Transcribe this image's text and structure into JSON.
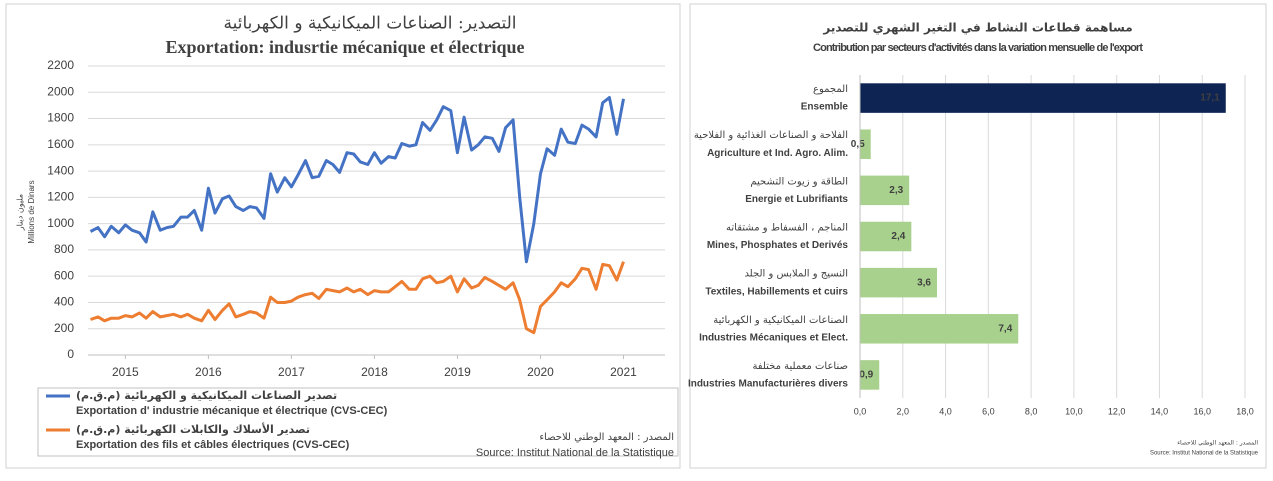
{
  "chart_data": [
    {
      "type": "line",
      "title_ar": "التصدير: الصناعات الميكانيكية و الكهربائية",
      "title": "Exportation: indusrtie mécanique et électrique",
      "ylabel_ar": "مليون دينار",
      "ylabel": "Millions de Dinars",
      "source_ar": "المصدر : المعهد الوطني للاحصاء",
      "source": "Source: Institut National de la Statistique",
      "xlim": [
        2014.55,
        2021.5
      ],
      "xticks": [
        2015,
        2016,
        2017,
        2018,
        2019,
        2020,
        2021
      ],
      "ylim": [
        0,
        2200
      ],
      "yticks": [
        0,
        200,
        400,
        600,
        800,
        1000,
        1200,
        1400,
        1600,
        1800,
        2000,
        2200
      ],
      "grid": true,
      "x": [
        2014.58,
        2014.67,
        2014.75,
        2014.83,
        2014.92,
        2015.0,
        2015.08,
        2015.17,
        2015.25,
        2015.33,
        2015.42,
        2015.5,
        2015.58,
        2015.67,
        2015.75,
        2015.83,
        2015.92,
        2016.0,
        2016.08,
        2016.17,
        2016.25,
        2016.33,
        2016.42,
        2016.5,
        2016.58,
        2016.67,
        2016.75,
        2016.83,
        2016.92,
        2017.0,
        2017.08,
        2017.17,
        2017.25,
        2017.33,
        2017.42,
        2017.5,
        2017.58,
        2017.67,
        2017.75,
        2017.83,
        2017.92,
        2018.0,
        2018.08,
        2018.17,
        2018.25,
        2018.33,
        2018.42,
        2018.5,
        2018.58,
        2018.67,
        2018.75,
        2018.83,
        2018.92,
        2019.0,
        2019.08,
        2019.17,
        2019.25,
        2019.33,
        2019.42,
        2019.5,
        2019.58,
        2019.67,
        2019.75,
        2019.83,
        2019.92,
        2020.0,
        2020.08,
        2020.17,
        2020.25,
        2020.33,
        2020.42,
        2020.5,
        2020.58,
        2020.67,
        2020.75,
        2020.83,
        2020.92,
        2021.0
      ],
      "series": [
        {
          "name": "Exportation d' industrie mécanique et électrique (CVS-CEC)",
          "name_ar": "تصدير الصناعات الميكانيكية و الكهربائية (م.ق.م)",
          "color": "#4472c4",
          "values": [
            940,
            970,
            900,
            980,
            930,
            990,
            950,
            930,
            860,
            1090,
            950,
            970,
            980,
            1050,
            1050,
            1100,
            950,
            1270,
            1080,
            1190,
            1210,
            1130,
            1100,
            1130,
            1120,
            1040,
            1380,
            1240,
            1350,
            1280,
            1370,
            1480,
            1350,
            1360,
            1480,
            1450,
            1390,
            1540,
            1530,
            1470,
            1450,
            1540,
            1460,
            1510,
            1500,
            1610,
            1590,
            1600,
            1770,
            1710,
            1790,
            1890,
            1860,
            1540,
            1810,
            1560,
            1600,
            1660,
            1650,
            1550,
            1730,
            1790,
            1200,
            710,
            1000,
            1380,
            1570,
            1520,
            1720,
            1620,
            1610,
            1750,
            1720,
            1660,
            1920,
            1960,
            1680,
            1950
          ]
        },
        {
          "name": "Exportation des fils et câbles électriques (CVS-CEC)",
          "name_ar": "تصدير الأسلاك والكابلات الكهربائية (م.ق.م)",
          "color": "#ed7d31",
          "values": [
            270,
            290,
            260,
            280,
            280,
            300,
            290,
            320,
            280,
            330,
            290,
            300,
            310,
            290,
            310,
            280,
            260,
            340,
            270,
            340,
            390,
            290,
            310,
            330,
            320,
            280,
            440,
            400,
            400,
            410,
            440,
            460,
            470,
            430,
            500,
            490,
            480,
            510,
            480,
            500,
            460,
            490,
            480,
            480,
            520,
            560,
            500,
            500,
            580,
            600,
            550,
            560,
            600,
            480,
            580,
            510,
            530,
            590,
            560,
            530,
            500,
            550,
            420,
            200,
            170,
            370,
            420,
            480,
            550,
            520,
            580,
            660,
            650,
            500,
            690,
            680,
            570,
            710
          ]
        }
      ]
    },
    {
      "type": "hbar",
      "title_ar": "مساهمة قطاعات النشاط في التغير الشهري للتصدير",
      "title": "Contribution par secteurs d'activités dans la variation mensuelle de l'export",
      "source_ar": "المصدر : المعهد الوطني للاحصاء",
      "source": "Source: Institut National de la Statistique",
      "categories_ar": [
        "المجموع",
        "الفلاحة و الصناعات الغذائية و الفلاحية",
        "الطاقة و زيوت التشحيم",
        "المناجم ، الفسفاط و مشتقاته",
        "النسيج و الملابس و الجلد",
        "الصناعات الميكانيكية و الكهربائية",
        "صناعات معملية مختلفة"
      ],
      "categories": [
        "Ensemble",
        "Agriculture et Ind. Agro. Alim.",
        "Energie et Lubrifiants",
        "Mines, Phosphates et Derivés",
        "Textiles, Habillements et cuirs",
        "Industries Mécaniques et Elect.",
        "Industries Manufacturières divers"
      ],
      "values": [
        17.1,
        0.5,
        2.3,
        2.4,
        3.6,
        7.4,
        0.9
      ],
      "value_labels": [
        "17,1",
        "0,5",
        "2,3",
        "2,4",
        "3,6",
        "7,4",
        "0,9"
      ],
      "colors": [
        "#0e2452",
        "#a9d18e",
        "#a9d18e",
        "#a9d18e",
        "#a9d18e",
        "#a9d18e",
        "#a9d18e"
      ],
      "xlim": [
        0,
        18
      ],
      "xticks": [
        {
          "value": 0,
          "label": "0,0"
        },
        {
          "value": 2,
          "label": "2,0"
        },
        {
          "value": 4,
          "label": "4,0"
        },
        {
          "value": 6,
          "label": "6,0"
        },
        {
          "value": 8,
          "label": "8,0"
        },
        {
          "value": 10,
          "label": "10,0"
        },
        {
          "value": 12,
          "label": "12,0"
        },
        {
          "value": 14,
          "label": "14,0"
        },
        {
          "value": 16,
          "label": "16,0"
        },
        {
          "value": 18,
          "label": "18,0"
        }
      ],
      "grid": true
    }
  ]
}
